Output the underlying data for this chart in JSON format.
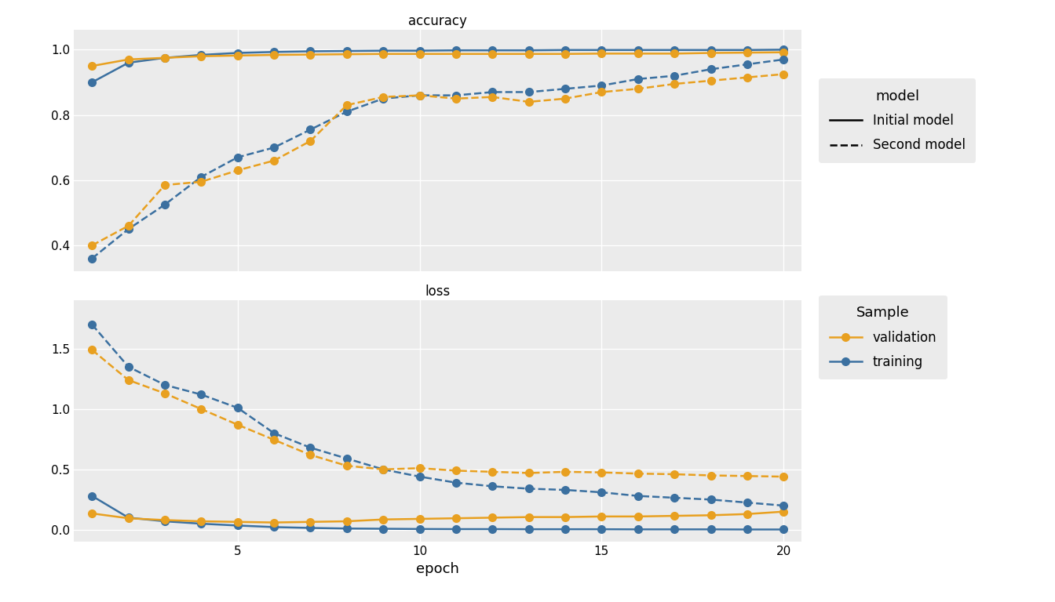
{
  "epochs": [
    1,
    2,
    3,
    4,
    5,
    6,
    7,
    8,
    9,
    10,
    11,
    12,
    13,
    14,
    15,
    16,
    17,
    18,
    19,
    20
  ],
  "acc_init_train": [
    0.9,
    0.96,
    0.975,
    0.984,
    0.99,
    0.993,
    0.995,
    0.996,
    0.997,
    0.997,
    0.998,
    0.998,
    0.998,
    0.999,
    0.999,
    0.999,
    0.999,
    0.999,
    0.999,
    1.0
  ],
  "acc_init_val": [
    0.95,
    0.97,
    0.975,
    0.98,
    0.982,
    0.984,
    0.985,
    0.986,
    0.987,
    0.987,
    0.987,
    0.987,
    0.987,
    0.987,
    0.988,
    0.988,
    0.988,
    0.99,
    0.991,
    0.992
  ],
  "acc_second_train": [
    0.36,
    0.45,
    0.525,
    0.61,
    0.67,
    0.7,
    0.755,
    0.81,
    0.85,
    0.86,
    0.86,
    0.87,
    0.87,
    0.88,
    0.89,
    0.91,
    0.92,
    0.94,
    0.955,
    0.97
  ],
  "acc_second_val": [
    0.4,
    0.46,
    0.585,
    0.595,
    0.63,
    0.66,
    0.72,
    0.83,
    0.855,
    0.86,
    0.85,
    0.855,
    0.84,
    0.85,
    0.87,
    0.88,
    0.895,
    0.905,
    0.915,
    0.925
  ],
  "loss_init_train": [
    0.28,
    0.1,
    0.07,
    0.05,
    0.035,
    0.022,
    0.015,
    0.01,
    0.008,
    0.006,
    0.005,
    0.005,
    0.004,
    0.004,
    0.004,
    0.003,
    0.003,
    0.003,
    0.002,
    0.002
  ],
  "loss_init_val": [
    0.135,
    0.095,
    0.08,
    0.07,
    0.065,
    0.06,
    0.065,
    0.07,
    0.085,
    0.09,
    0.095,
    0.1,
    0.105,
    0.105,
    0.11,
    0.11,
    0.115,
    0.12,
    0.13,
    0.15
  ],
  "loss_second_train": [
    1.7,
    1.35,
    1.2,
    1.12,
    1.01,
    0.8,
    0.68,
    0.59,
    0.5,
    0.44,
    0.39,
    0.36,
    0.34,
    0.33,
    0.31,
    0.28,
    0.265,
    0.25,
    0.225,
    0.2
  ],
  "loss_second_val": [
    1.49,
    1.24,
    1.13,
    1.0,
    0.87,
    0.745,
    0.62,
    0.53,
    0.5,
    0.51,
    0.49,
    0.48,
    0.47,
    0.48,
    0.475,
    0.465,
    0.46,
    0.45,
    0.445,
    0.44
  ],
  "color_orange": "#E8A020",
  "color_blue": "#3B70A0",
  "panel_bg": "#EBEBEB",
  "grid_color": "#FFFFFF",
  "strip_bg": "#D3D3D3",
  "fig_bg": "#FFFFFF",
  "legend_bg": "#EBEBEB"
}
